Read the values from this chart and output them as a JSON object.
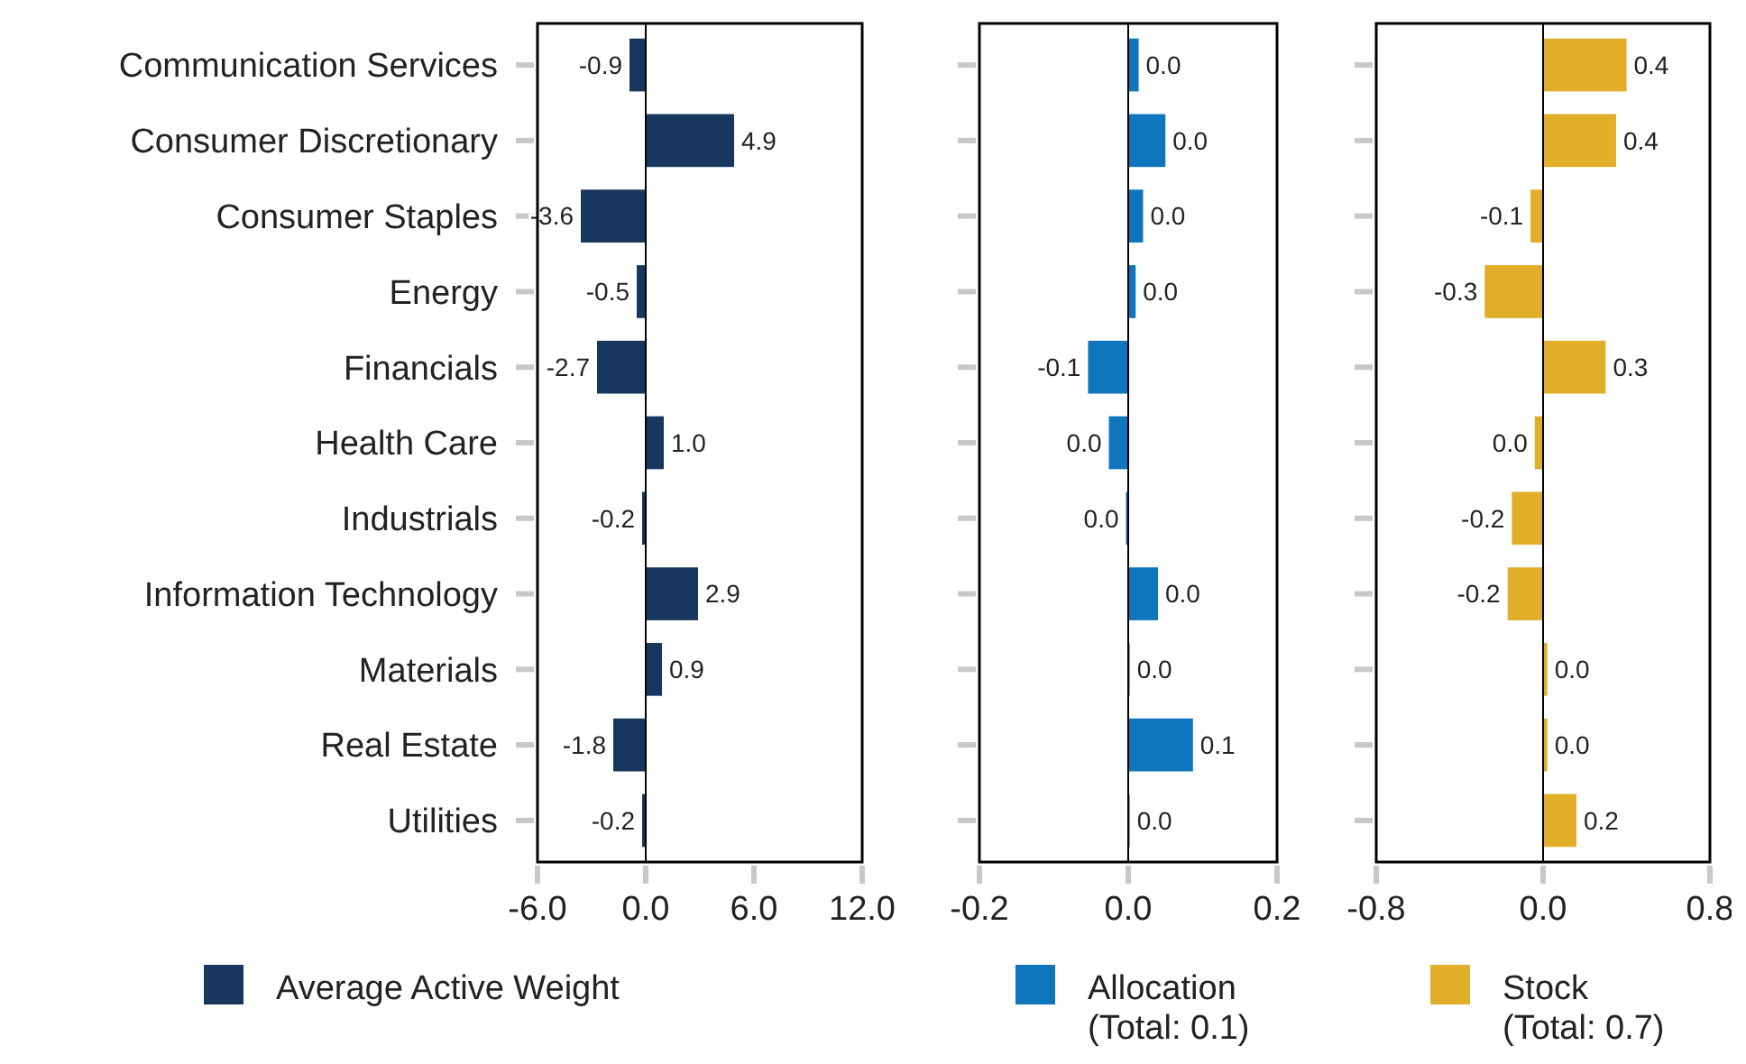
{
  "chart_data": [
    {
      "type": "bar",
      "orientation": "horizontal",
      "categories": [
        "Communication Services",
        "Consumer Discretionary",
        "Consumer Staples",
        "Energy",
        "Financials",
        "Health Care",
        "Industrials",
        "Information Technology",
        "Materials",
        "Real Estate",
        "Utilities"
      ],
      "xlim": [
        -6,
        12
      ],
      "xticks": [
        {
          "value": -6,
          "label": "-6.0"
        },
        {
          "value": 0,
          "label": "0.0"
        },
        {
          "value": 6,
          "label": "6.0"
        },
        {
          "value": 12,
          "label": "12.0"
        }
      ],
      "series": [
        {
          "name": "Average Active Weight",
          "color": "#17375e",
          "values": [
            -0.9,
            4.9,
            -3.6,
            -0.5,
            -2.7,
            1.0,
            -0.2,
            2.9,
            0.9,
            -1.8,
            -0.2
          ],
          "value_labels": [
            "-0.9",
            "4.9",
            "-3.6",
            "-0.5",
            "-2.7",
            "1.0",
            "-0.2",
            "2.9",
            "0.9",
            "-1.8",
            "-0.2"
          ]
        }
      ],
      "legend": "bottom"
    },
    {
      "type": "bar",
      "orientation": "horizontal",
      "categories": [
        null,
        null,
        null,
        null,
        null,
        null,
        null,
        null,
        null,
        null,
        null
      ],
      "tick_labels": "x",
      "xlim": [
        -0.2,
        0.2
      ],
      "xticks": [
        {
          "value": -0.2,
          "label": "-0.2"
        },
        {
          "value": 0,
          "label": "0.0"
        },
        {
          "value": 0.2,
          "label": "0.2"
        }
      ],
      "series": [
        {
          "name": "Allocation (Total: 0.1)",
          "color": "#0f75bc",
          "values": [
            0.014,
            0.05,
            0.02,
            0.01,
            -0.054,
            -0.026,
            -0.003,
            0.04,
            0.002,
            0.087,
            0.002
          ],
          "value_labels": [
            "0.0",
            "0.0",
            "0.0",
            "0.0",
            "-0.1",
            "0.0",
            "0.0",
            "0.0",
            "0.0",
            "0.1",
            "0.0"
          ]
        }
      ],
      "legend": "bottom"
    },
    {
      "type": "bar",
      "orientation": "horizontal",
      "categories": [
        null,
        null,
        null,
        null,
        null,
        null,
        null,
        null,
        null,
        null,
        null
      ],
      "tick_labels": "x",
      "xlim": [
        -0.8,
        0.8
      ],
      "xticks": [
        {
          "value": -0.8,
          "label": "-0.8"
        },
        {
          "value": 0,
          "label": "0.0"
        },
        {
          "value": 0.8,
          "label": "0.8"
        }
      ],
      "series": [
        {
          "name": "Stock (Total: 0.7)",
          "color": "#e0ae28",
          "values": [
            0.4,
            0.35,
            -0.06,
            -0.28,
            0.3,
            -0.04,
            -0.15,
            -0.17,
            0.02,
            0.02,
            0.16
          ],
          "value_labels": [
            "0.4",
            "0.4",
            "-0.1",
            "-0.3",
            "0.3",
            "0.0",
            "-0.2",
            "-0.2",
            "0.0",
            "0.0",
            "0.2"
          ]
        }
      ],
      "legend": "bottom"
    }
  ]
}
